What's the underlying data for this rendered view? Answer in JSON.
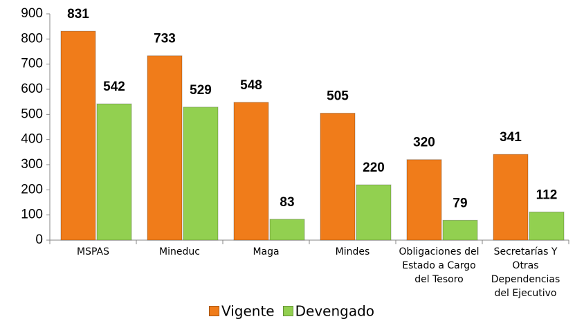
{
  "chart_data": {
    "type": "bar",
    "categories": [
      "MSPAS",
      "Mineduc",
      "Maga",
      "Mindes",
      "Obligaciones del Estado a Cargo del Tesoro",
      "Secretarías Y Otras Dependencias del Ejecutivo"
    ],
    "series": [
      {
        "name": "Vigente",
        "color": "#f07c1a",
        "values": [
          831,
          733,
          548,
          505,
          320,
          341
        ]
      },
      {
        "name": "Devengado",
        "color": "#92d050",
        "values": [
          542,
          529,
          83,
          220,
          79,
          112
        ]
      }
    ],
    "ylim": [
      0,
      900
    ],
    "yticks": [
      0,
      100,
      200,
      300,
      400,
      500,
      600,
      700,
      800,
      900
    ],
    "legend": "bottom"
  }
}
